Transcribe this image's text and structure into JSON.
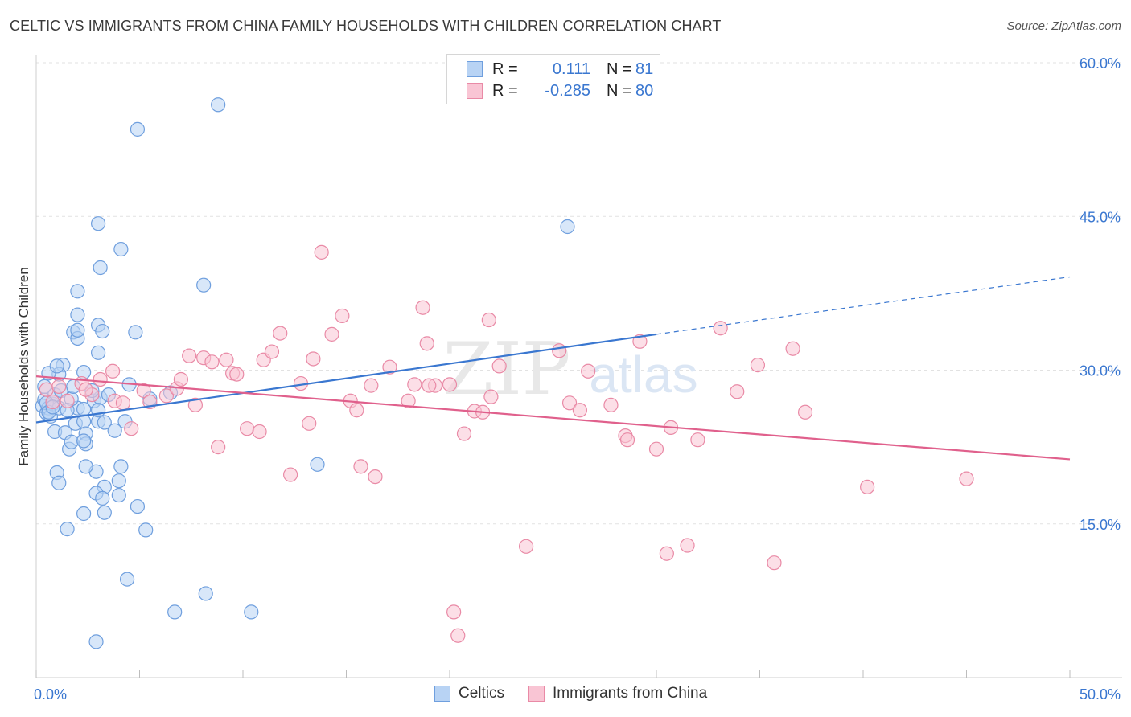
{
  "title": "CELTIC VS IMMIGRANTS FROM CHINA FAMILY HOUSEHOLDS WITH CHILDREN CORRELATION CHART",
  "source": "Source: ZipAtlas.com",
  "watermark": {
    "zip": "ZIP",
    "atlas": "atlas"
  },
  "legend": {
    "r_label": "R =",
    "n_label": "N =",
    "series": [
      {
        "name": "Celtics",
        "r": "0.111",
        "n": "81",
        "color": "#6f9fde",
        "fill": "#b8d3f4"
      },
      {
        "name": "Immigrants from China",
        "r": "-0.285",
        "n": "80",
        "color": "#e98aa6",
        "fill": "#f9c5d4"
      }
    ]
  },
  "chart_data": {
    "type": "scatter",
    "title": "CELTIC VS IMMIGRANTS FROM CHINA FAMILY HOUSEHOLDS WITH CHILDREN CORRELATION CHART",
    "xlabel": "",
    "ylabel": "Family Households with Children",
    "xlim": [
      0,
      50
    ],
    "ylim": [
      0,
      60
    ],
    "x_tick_labels": [
      "0.0%",
      "50.0%"
    ],
    "y_ticks": [
      15,
      30,
      45,
      60
    ],
    "y_tick_labels": [
      "15.0%",
      "30.0%",
      "45.0%",
      "60.0%"
    ],
    "grid": true,
    "legend_position": "top-center",
    "series": [
      {
        "name": "Celtics",
        "color": "#3a77d0",
        "fill": "#b8d3f4",
        "trend": {
          "x": [
            0,
            30
          ],
          "y": [
            24.9,
            33.5
          ],
          "dash_x": [
            30,
            50
          ],
          "dash_y": [
            33.5,
            39.1
          ]
        },
        "points": [
          [
            0.3,
            26.5
          ],
          [
            0.4,
            27.1
          ],
          [
            0.5,
            25.8
          ],
          [
            0.6,
            26.3
          ],
          [
            0.7,
            25.5
          ],
          [
            0.8,
            26.7
          ],
          [
            0.4,
            28.4
          ],
          [
            0.9,
            24.0
          ],
          [
            1.1,
            26.3
          ],
          [
            1.3,
            30.5
          ],
          [
            1.1,
            29.6
          ],
          [
            0.6,
            29.7
          ],
          [
            0.9,
            27.6
          ],
          [
            1.2,
            28.0
          ],
          [
            1.4,
            23.9
          ],
          [
            1.6,
            22.3
          ],
          [
            1.7,
            23.0
          ],
          [
            1.9,
            24.8
          ],
          [
            2.0,
            26.3
          ],
          [
            1.7,
            27.2
          ],
          [
            2.3,
            25.0
          ],
          [
            2.4,
            23.8
          ],
          [
            2.4,
            22.8
          ],
          [
            2.3,
            26.2
          ],
          [
            2.8,
            27.0
          ],
          [
            3.0,
            25.0
          ],
          [
            3.1,
            27.3
          ],
          [
            3.0,
            26.1
          ],
          [
            3.3,
            24.9
          ],
          [
            3.5,
            27.6
          ],
          [
            2.3,
            29.8
          ],
          [
            3.0,
            31.7
          ],
          [
            3.0,
            34.4
          ],
          [
            1.8,
            33.7
          ],
          [
            2.0,
            33.1
          ],
          [
            3.2,
            33.8
          ],
          [
            2.0,
            33.9
          ],
          [
            2.0,
            37.7
          ],
          [
            2.0,
            35.4
          ],
          [
            3.1,
            40.0
          ],
          [
            3.0,
            44.3
          ],
          [
            4.1,
            41.8
          ],
          [
            4.9,
            53.5
          ],
          [
            8.8,
            55.9
          ],
          [
            8.1,
            38.3
          ],
          [
            4.8,
            33.7
          ],
          [
            4.5,
            28.6
          ],
          [
            5.5,
            27.2
          ],
          [
            6.5,
            27.8
          ],
          [
            4.3,
            25.0
          ],
          [
            3.8,
            24.1
          ],
          [
            4.1,
            20.6
          ],
          [
            4.0,
            19.2
          ],
          [
            4.0,
            17.8
          ],
          [
            3.3,
            18.6
          ],
          [
            2.9,
            18.0
          ],
          [
            3.2,
            17.5
          ],
          [
            2.9,
            20.1
          ],
          [
            2.4,
            20.6
          ],
          [
            1.0,
            20.0
          ],
          [
            1.1,
            19.0
          ],
          [
            1.5,
            14.5
          ],
          [
            2.3,
            23.1
          ],
          [
            4.9,
            16.7
          ],
          [
            5.3,
            14.4
          ],
          [
            3.3,
            16.1
          ],
          [
            2.3,
            16.0
          ],
          [
            4.4,
            9.6
          ],
          [
            6.7,
            6.4
          ],
          [
            8.2,
            8.2
          ],
          [
            10.4,
            6.4
          ],
          [
            2.9,
            3.5
          ],
          [
            13.6,
            20.8
          ],
          [
            25.7,
            44.0
          ],
          [
            1.0,
            30.4
          ],
          [
            0.5,
            26.8
          ],
          [
            1.5,
            26.1
          ],
          [
            2.7,
            28.0
          ],
          [
            0.6,
            25.9
          ],
          [
            1.8,
            28.4
          ],
          [
            0.8,
            26.4
          ]
        ]
      },
      {
        "name": "Immigrants from China",
        "color": "#e0608c",
        "fill": "#f9c5d4",
        "trend": {
          "x": [
            0,
            50
          ],
          "y": [
            29.4,
            21.3
          ]
        },
        "points": [
          [
            0.5,
            28.1
          ],
          [
            0.8,
            26.9
          ],
          [
            1.1,
            28.4
          ],
          [
            1.5,
            27.0
          ],
          [
            2.2,
            28.7
          ],
          [
            2.7,
            27.6
          ],
          [
            3.1,
            29.1
          ],
          [
            3.8,
            27.0
          ],
          [
            3.7,
            29.9
          ],
          [
            4.2,
            26.8
          ],
          [
            4.6,
            24.3
          ],
          [
            5.2,
            28.0
          ],
          [
            5.5,
            26.9
          ],
          [
            6.3,
            27.5
          ],
          [
            6.8,
            28.2
          ],
          [
            7.0,
            29.1
          ],
          [
            7.4,
            31.4
          ],
          [
            7.7,
            26.6
          ],
          [
            8.1,
            31.2
          ],
          [
            8.5,
            30.8
          ],
          [
            8.8,
            22.5
          ],
          [
            9.2,
            31.0
          ],
          [
            9.5,
            29.7
          ],
          [
            9.7,
            29.6
          ],
          [
            10.2,
            24.3
          ],
          [
            10.8,
            24.0
          ],
          [
            11.0,
            31.0
          ],
          [
            11.4,
            31.8
          ],
          [
            11.8,
            33.6
          ],
          [
            12.3,
            19.8
          ],
          [
            12.8,
            28.7
          ],
          [
            13.2,
            24.8
          ],
          [
            13.4,
            31.1
          ],
          [
            13.8,
            41.5
          ],
          [
            14.3,
            33.5
          ],
          [
            14.8,
            35.3
          ],
          [
            15.2,
            27.0
          ],
          [
            15.5,
            26.1
          ],
          [
            15.7,
            20.6
          ],
          [
            16.2,
            28.5
          ],
          [
            16.4,
            19.6
          ],
          [
            17.1,
            30.3
          ],
          [
            18.0,
            27.0
          ],
          [
            18.3,
            28.6
          ],
          [
            18.7,
            36.1
          ],
          [
            18.9,
            32.6
          ],
          [
            19.3,
            28.5
          ],
          [
            19.0,
            28.5
          ],
          [
            20.0,
            28.6
          ],
          [
            20.7,
            23.8
          ],
          [
            21.2,
            26.0
          ],
          [
            21.6,
            25.9
          ],
          [
            21.9,
            34.9
          ],
          [
            22.4,
            30.4
          ],
          [
            22.0,
            27.4
          ],
          [
            23.7,
            12.8
          ],
          [
            25.3,
            31.9
          ],
          [
            25.8,
            26.8
          ],
          [
            26.3,
            26.1
          ],
          [
            26.7,
            29.9
          ],
          [
            27.8,
            26.6
          ],
          [
            28.5,
            23.6
          ],
          [
            28.6,
            23.2
          ],
          [
            29.2,
            32.8
          ],
          [
            30.0,
            22.3
          ],
          [
            30.5,
            12.1
          ],
          [
            30.7,
            24.4
          ],
          [
            31.5,
            12.9
          ],
          [
            32.0,
            23.2
          ],
          [
            33.1,
            34.1
          ],
          [
            33.9,
            27.9
          ],
          [
            34.9,
            30.5
          ],
          [
            35.7,
            11.2
          ],
          [
            36.6,
            32.1
          ],
          [
            37.2,
            25.9
          ],
          [
            40.2,
            18.6
          ],
          [
            45.0,
            19.4
          ],
          [
            20.2,
            6.4
          ],
          [
            20.4,
            4.1
          ],
          [
            2.4,
            28.1
          ]
        ]
      }
    ]
  }
}
